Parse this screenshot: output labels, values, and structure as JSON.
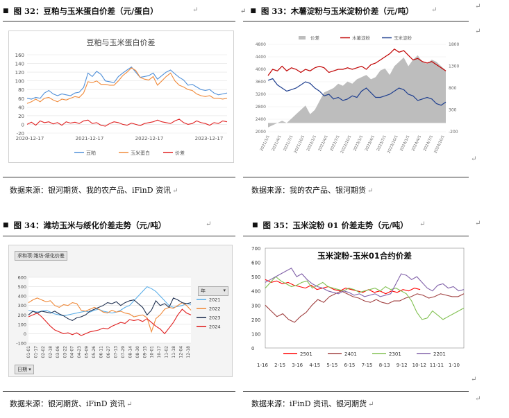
{
  "fig32": {
    "heading": "图 32：豆粕与玉米蛋白价差（元/蛋白）",
    "source": "数据来源：银河期货、我的农产品、iFinD 资讯",
    "chart_data": {
      "type": "line",
      "title": "豆粕与玉米蛋白价差",
      "ylim": [
        -20,
        160
      ],
      "yticks": [
        -20,
        0,
        20,
        40,
        60,
        80,
        100,
        120,
        140,
        160
      ],
      "xticks": [
        "2020-12-17",
        "2021-12-17",
        "2022-12-17",
        "2023-12-17"
      ],
      "series": [
        {
          "name": "豆粕",
          "color": "#4f8fd8",
          "values": [
            60,
            58,
            62,
            60,
            72,
            78,
            70,
            66,
            70,
            68,
            66,
            72,
            74,
            85,
            118,
            110,
            122,
            115,
            100,
            98,
            96,
            110,
            118,
            125,
            132,
            120,
            108,
            110,
            112,
            118,
            104,
            112,
            120,
            125,
            116,
            108,
            102,
            90,
            92,
            86,
            80,
            78,
            80,
            72,
            68,
            70,
            72
          ]
        },
        {
          "name": "玉米蛋白",
          "color": "#f08a3a",
          "values": [
            48,
            52,
            58,
            52,
            60,
            62,
            56,
            52,
            58,
            56,
            60,
            64,
            62,
            72,
            98,
            96,
            100,
            92,
            92,
            90,
            90,
            100,
            112,
            120,
            130,
            124,
            108,
            104,
            102,
            110,
            90,
            100,
            110,
            118,
            100,
            90,
            86,
            80,
            78,
            70,
            66,
            64,
            66,
            60,
            60,
            58,
            60
          ]
        },
        {
          "name": "价差",
          "color": "#e02020",
          "values": [
            0,
            5,
            -2,
            8,
            4,
            6,
            1,
            4,
            -2,
            6,
            3,
            5,
            2,
            8,
            10,
            2,
            4,
            -2,
            -4,
            2,
            6,
            4,
            0,
            -2,
            3,
            0,
            -3,
            2,
            4,
            6,
            10,
            6,
            4,
            2,
            8,
            12,
            4,
            0,
            2,
            8,
            4,
            2,
            -2,
            4,
            2,
            8,
            6
          ]
        }
      ]
    }
  },
  "fig33": {
    "heading": "图 33：木薯淀粉与玉米淀粉价差（元/吨）",
    "source": "数据来源：我的农产品、银河期货",
    "chart_data": {
      "type": "line",
      "legend": [
        "价差",
        "木薯淀粉",
        "玉米淀粉"
      ],
      "ylim_left": [
        2000,
        4800
      ],
      "yticks_left": [
        2000,
        2400,
        2800,
        3200,
        3600,
        4000,
        4400,
        4800
      ],
      "ylim_right": [
        -200,
        1800
      ],
      "yticks_right": [
        -200,
        300,
        800,
        1300,
        1800
      ],
      "xticks": [
        "2021/1/1",
        "2021/4/1",
        "2021/7/1",
        "2021/10/1",
        "2022/1/1",
        "2022/4/1",
        "2022/7/1",
        "2022/10/1",
        "2023/1/1",
        "2023/4/1",
        "2023/7/1",
        "2023/10/1",
        "2024/1/1",
        "2024/4/1",
        "2024/7/1",
        "2024/10/1"
      ],
      "series": [
        {
          "name": "价差",
          "axis": "right",
          "color": "#bdbdbd",
          "values": [
            -100,
            -50,
            0,
            50,
            0,
            100,
            200,
            300,
            400,
            200,
            300,
            500,
            700,
            750,
            800,
            900,
            850,
            950,
            900,
            1000,
            1050,
            1100,
            1000,
            1050,
            1200,
            1250,
            1100,
            1300,
            1400,
            1500,
            1300,
            1450,
            1550,
            1400,
            1350,
            1450,
            1400,
            1300,
            1200
          ]
        },
        {
          "name": "木薯淀粉",
          "axis": "left",
          "color": "#c00000",
          "values": [
            3800,
            4000,
            3950,
            4100,
            3950,
            4050,
            4000,
            3900,
            4000,
            3950,
            4050,
            4100,
            4050,
            3900,
            3950,
            4000,
            4000,
            4050,
            4000,
            4050,
            4100,
            4000,
            4150,
            4200,
            4300,
            4400,
            4500,
            4650,
            4550,
            4600,
            4450,
            4300,
            4350,
            4250,
            4200,
            4250,
            4150,
            4050,
            3950
          ]
        },
        {
          "name": "玉米淀粉",
          "axis": "left",
          "color": "#1f3f8f",
          "values": [
            3650,
            3700,
            3500,
            3400,
            3300,
            3350,
            3400,
            3500,
            3600,
            3550,
            3400,
            3300,
            3150,
            3200,
            3050,
            3100,
            3000,
            3050,
            3150,
            3100,
            3300,
            3400,
            3250,
            3100,
            3100,
            3150,
            3200,
            3300,
            3400,
            3350,
            3200,
            3150,
            3000,
            3050,
            3100,
            3050,
            2900,
            2850,
            2950
          ]
        }
      ]
    }
  },
  "fig34": {
    "heading": "图 34：潍坊玉米与绥化价差走势（元/吨）",
    "source": "数据来源：银河期货、iFinD 资讯",
    "pivot_label": "求和项:潍坊-绥化价差",
    "legend_title": "年",
    "axis_button": "日期",
    "chart_data": {
      "type": "line",
      "ylim": [
        -100,
        600
      ],
      "yticks": [
        -100,
        0,
        100,
        200,
        300,
        400,
        500,
        600
      ],
      "xticks": [
        "01-01",
        "01-17",
        "02-02",
        "02-18",
        "03-06",
        "03-22",
        "04-07",
        "04-23",
        "05-09",
        "05-26",
        "06-11",
        "06-27",
        "07-13",
        "07-29",
        "08-14",
        "08-30",
        "09-15",
        "10-01",
        "10-17",
        "11-02",
        "11-18",
        "12-04",
        "12-18"
      ],
      "series": [
        {
          "name": "2021",
          "color": "#5aaee8",
          "values": [
            250,
            240,
            230,
            240,
            250,
            230,
            210,
            200,
            190,
            200,
            210,
            220,
            230,
            240,
            230,
            250,
            260,
            240,
            230,
            220,
            230,
            250,
            280,
            300,
            350,
            400,
            450,
            500,
            480,
            450,
            400,
            350,
            300,
            280,
            290,
            300,
            320,
            310
          ]
        },
        {
          "name": "2022",
          "color": "#f08a3a",
          "values": [
            330,
            360,
            380,
            360,
            340,
            350,
            300,
            280,
            310,
            300,
            330,
            320,
            250,
            240,
            260,
            280,
            260,
            230,
            220,
            250,
            230,
            240,
            220,
            210,
            180,
            190,
            200,
            170,
            20,
            160,
            200,
            260,
            280,
            270,
            300,
            330,
            300,
            250
          ]
        },
        {
          "name": "2023",
          "color": "#1f3050",
          "values": [
            200,
            240,
            220,
            240,
            230,
            220,
            240,
            210,
            190,
            160,
            140,
            170,
            180,
            200,
            240,
            260,
            280,
            300,
            330,
            320,
            340,
            300,
            330,
            350,
            360,
            320,
            280,
            200,
            250,
            350,
            300,
            320,
            280,
            380,
            360,
            330,
            320,
            330
          ]
        },
        {
          "name": "2024",
          "color": "#e02020",
          "values": [
            180,
            200,
            220,
            180,
            130,
            80,
            40,
            20,
            0,
            10,
            -10,
            10,
            -20,
            0,
            20,
            30,
            40,
            60,
            50,
            80,
            100,
            120,
            110,
            150,
            140,
            150,
            130,
            160,
            120,
            80,
            50,
            0,
            60,
            120,
            200,
            260,
            220,
            200
          ]
        }
      ]
    }
  },
  "fig35": {
    "heading": "图 35：玉米淀粉 01 价差走势（元/吨）",
    "source": "数据来源：iFinD 资讯、银河期货",
    "chart_data": {
      "type": "line",
      "title": "玉米淀粉-玉米01合约价差",
      "ylim": [
        0,
        700
      ],
      "yticks": [
        0,
        100,
        200,
        300,
        400,
        500,
        600,
        700
      ],
      "xticks": [
        "1-16",
        "2-15",
        "3-16",
        "4-15",
        "5-15",
        "6-15",
        "7-15",
        "8-13",
        "9-12",
        "10-12",
        "11-11",
        "1-10"
      ],
      "series": [
        {
          "name": "2501",
          "color": "#ff0000",
          "values": [
            480,
            460,
            470,
            450,
            460,
            440,
            430,
            420,
            440,
            410,
            420,
            430,
            410,
            400,
            420,
            410,
            400,
            390,
            410,
            390,
            400,
            380,
            400,
            390,
            410,
            400,
            420,
            410
          ]
        },
        {
          "name": "2401",
          "color": "#a04040",
          "values": [
            300,
            260,
            220,
            240,
            200,
            180,
            220,
            250,
            300,
            340,
            320,
            360,
            380,
            400,
            380,
            360,
            350,
            330,
            320,
            340,
            320,
            310,
            330,
            330,
            350,
            360,
            380,
            370,
            350,
            360,
            380,
            370,
            360,
            360,
            380
          ]
        },
        {
          "name": "2301",
          "color": "#80c050",
          "values": [
            420,
            460,
            500,
            470,
            450,
            430,
            440,
            460,
            470,
            420,
            440,
            460,
            430,
            420,
            410,
            400,
            420,
            410,
            390,
            400,
            410,
            420,
            400,
            430,
            410,
            420,
            400,
            380,
            330,
            250,
            200,
            210,
            260,
            230,
            200,
            220,
            240,
            260,
            280
          ]
        },
        {
          "name": "2201",
          "color": "#8060a8",
          "values": [
            460,
            480,
            500,
            520,
            540,
            560,
            500,
            520,
            480,
            450,
            430,
            420,
            400,
            390,
            380,
            400,
            390,
            370,
            380,
            360,
            370,
            380,
            360,
            370,
            380,
            450,
            520,
            510,
            480,
            500,
            460,
            420,
            400,
            440,
            450,
            420,
            430,
            400,
            410
          ]
        }
      ]
    }
  }
}
